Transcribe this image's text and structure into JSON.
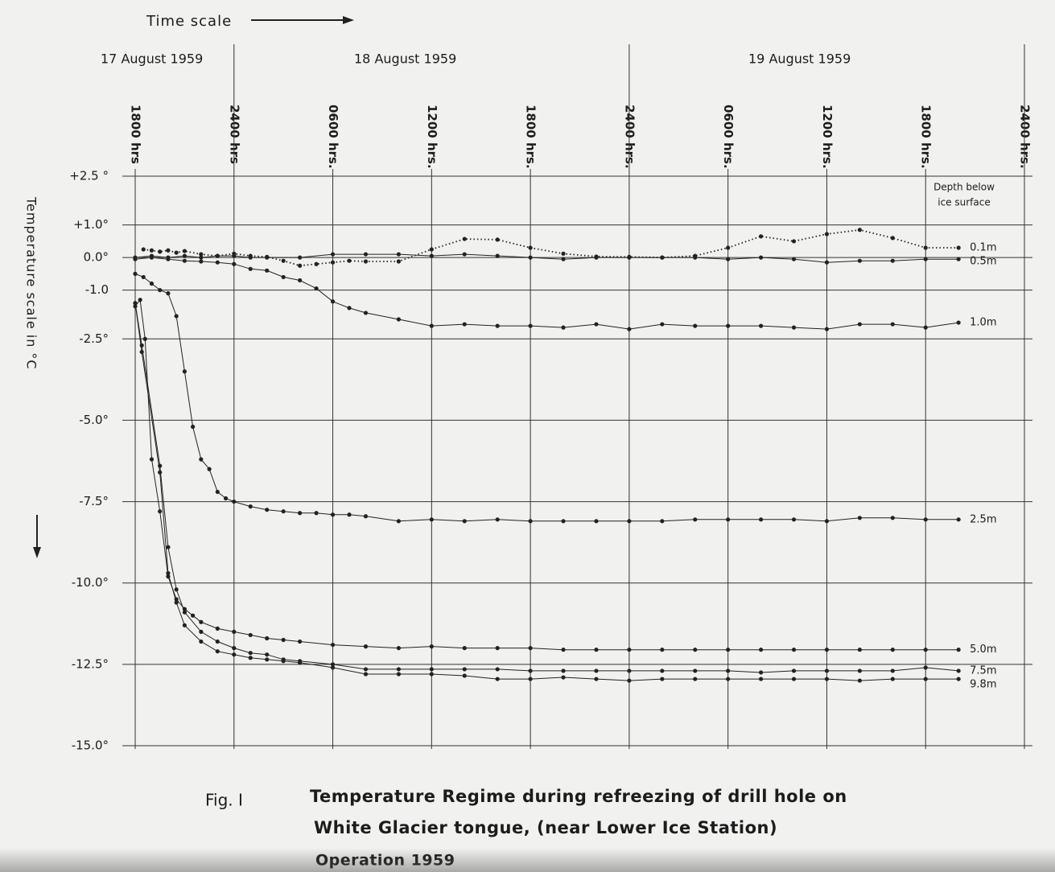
{
  "chart_data": {
    "type": "line",
    "x_header": "Time scale",
    "date_labels": [
      "17  August  1959",
      "18  August  1959",
      "19  August  1959"
    ],
    "y_label": "Temperature  scale  in  °C",
    "legend_title": [
      "Depth below",
      "ice surface"
    ],
    "caption_label": "Fig. I",
    "caption_lines": [
      "Temperature Regime during refreezing of drill hole on",
      "White Glacier tongue, (near Lower Ice Station)",
      "Operation   1959"
    ],
    "xlim": [
      0,
      54
    ],
    "xticks": [
      {
        "value": 0,
        "label": "1800 hrs"
      },
      {
        "value": 6,
        "label": "2400 hrs"
      },
      {
        "value": 12,
        "label": "0600 hrs."
      },
      {
        "value": 18,
        "label": "1200 hrs."
      },
      {
        "value": 24,
        "label": "1800 hrs."
      },
      {
        "value": 30,
        "label": "2400 hrs."
      },
      {
        "value": 36,
        "label": "0600 hrs."
      },
      {
        "value": 42,
        "label": "1200 hrs."
      },
      {
        "value": 48,
        "label": "1800 hrs."
      },
      {
        "value": 54,
        "label": "2400 hrs."
      }
    ],
    "ylim": [
      -15,
      2.5
    ],
    "yticks": [
      {
        "value": 2.5,
        "label": "+2.5 °"
      },
      {
        "value": 1,
        "label": "+1.0°"
      },
      {
        "value": 0,
        "label": "0.0°"
      },
      {
        "value": -1,
        "label": "-1.0"
      },
      {
        "value": -2.5,
        "label": "-2.5°"
      },
      {
        "value": -5,
        "label": "-5.0°"
      },
      {
        "value": -7.5,
        "label": "-7.5°"
      },
      {
        "value": -10,
        "label": "-10.0°"
      },
      {
        "value": -12.5,
        "label": "-12.5°"
      },
      {
        "value": -15,
        "label": "-15.0°"
      }
    ],
    "grid": true,
    "series": [
      {
        "name": "0.1m",
        "color": "#222222",
        "line_style": "dotted",
        "x": [
          0.5,
          1,
          1.5,
          2,
          2.5,
          3,
          4,
          5,
          6,
          7,
          8,
          9,
          10,
          11,
          12,
          13,
          14,
          16,
          18,
          20,
          22,
          24,
          26,
          28,
          30,
          32,
          34,
          36,
          38,
          40,
          42,
          44,
          46,
          48,
          50
        ],
        "values": [
          0.25,
          0.22,
          0.18,
          0.22,
          0.15,
          0.2,
          0.1,
          0.05,
          0.12,
          0.05,
          0.02,
          -0.1,
          -0.25,
          -0.2,
          -0.15,
          -0.1,
          -0.12,
          -0.12,
          0.25,
          0.57,
          0.55,
          0.3,
          0.12,
          0.03,
          0.02,
          0,
          0.05,
          0.3,
          0.65,
          0.5,
          0.72,
          0.85,
          0.6,
          0.3,
          0.3
        ]
      },
      {
        "name": "0.5m",
        "color": "#222222",
        "line_style": "solid",
        "x": [
          0,
          1,
          2,
          3,
          4,
          5,
          6,
          7,
          8,
          10,
          12,
          14,
          16,
          18,
          20,
          22,
          24,
          26,
          28,
          30,
          32,
          34,
          36,
          38,
          40,
          42,
          44,
          46,
          48,
          50
        ],
        "values": [
          0,
          0.05,
          0,
          0.05,
          0,
          0.05,
          0.05,
          0,
          0,
          0,
          0.1,
          0.1,
          0.1,
          0.05,
          0.1,
          0.05,
          0,
          -0.05,
          0,
          0,
          0,
          0,
          -0.05,
          0,
          -0.05,
          -0.15,
          -0.1,
          -0.1,
          -0.05,
          -0.05
        ]
      },
      {
        "name": "1.0m",
        "color": "#222222",
        "line_style": "solid",
        "x": [
          0,
          1,
          2,
          3,
          4,
          5,
          6,
          7,
          8,
          9,
          10,
          11,
          12,
          13,
          14,
          16,
          18,
          20,
          22,
          24,
          26,
          28,
          30,
          32,
          34,
          36,
          38,
          40,
          42,
          44,
          46,
          48,
          50
        ],
        "values": [
          -0.05,
          0,
          -0.05,
          -0.1,
          -0.12,
          -0.15,
          -0.2,
          -0.35,
          -0.4,
          -0.6,
          -0.7,
          -0.95,
          -1.35,
          -1.55,
          -1.7,
          -1.9,
          -2.1,
          -2.05,
          -2.1,
          -2.1,
          -2.15,
          -2.05,
          -2.2,
          -2.05,
          -2.1,
          -2.1,
          -2.1,
          -2.15,
          -2.2,
          -2.05,
          -2.05,
          -2.15,
          -2
        ]
      },
      {
        "name": "2.5m",
        "color": "#222222",
        "line_style": "solid",
        "x": [
          0,
          0.5,
          1,
          1.5,
          2,
          2.5,
          3,
          3.5,
          4,
          4.5,
          5,
          5.5,
          6,
          7,
          8,
          9,
          10,
          11,
          12,
          13,
          14,
          16,
          18,
          20,
          22,
          24,
          26,
          28,
          30,
          32,
          34,
          36,
          38,
          40,
          42,
          44,
          46,
          48,
          50
        ],
        "values": [
          -0.5,
          -0.6,
          -0.8,
          -1,
          -1.1,
          -1.8,
          -3.5,
          -5.2,
          -6.2,
          -6.5,
          -7.2,
          -7.4,
          -7.5,
          -7.65,
          -7.75,
          -7.8,
          -7.85,
          -7.85,
          -7.9,
          -7.9,
          -7.95,
          -8.1,
          -8.05,
          -8.1,
          -8.05,
          -8.1,
          -8.1,
          -8.1,
          -8.1,
          -8.1,
          -8.05,
          -8.05,
          -8.05,
          -8.05,
          -8.1,
          -8,
          -8,
          -8.05,
          -8.05
        ]
      },
      {
        "name": "5.0m",
        "color": "#222222",
        "line_style": "solid",
        "x": [
          0,
          0.3,
          0.6,
          1,
          1.5,
          2,
          2.5,
          3,
          3.5,
          4,
          5,
          6,
          7,
          8,
          9,
          10,
          12,
          14,
          16,
          18,
          20,
          22,
          24,
          26,
          28,
          30,
          32,
          34,
          36,
          38,
          40,
          42,
          44,
          46,
          48,
          50
        ],
        "values": [
          -1.5,
          -1.3,
          -2.5,
          -6.2,
          -7.8,
          -9.8,
          -10.5,
          -10.8,
          -11,
          -11.2,
          -11.4,
          -11.5,
          -11.6,
          -11.7,
          -11.75,
          -11.8,
          -11.9,
          -11.95,
          -12,
          -11.95,
          -12,
          -12,
          -12,
          -12.05,
          -12.05,
          -12.05,
          -12.05,
          -12.05,
          -12.05,
          -12.05,
          -12.05,
          -12.05,
          -12.05,
          -12.05,
          -12.05,
          -12.05
        ]
      },
      {
        "name": "7.5m",
        "color": "#222222",
        "line_style": "solid",
        "x": [
          0,
          0.4,
          1.5,
          2,
          2.5,
          3,
          4,
          5,
          6,
          7,
          8,
          9,
          10,
          12,
          14,
          16,
          18,
          20,
          22,
          24,
          26,
          28,
          30,
          32,
          34,
          36,
          38,
          40,
          42,
          44,
          46,
          48,
          50
        ],
        "values": [
          -1.4,
          -2.7,
          -6.4,
          -8.9,
          -10.2,
          -10.9,
          -11.5,
          -11.8,
          -12,
          -12.15,
          -12.2,
          -12.35,
          -12.4,
          -12.5,
          -12.65,
          -12.65,
          -12.65,
          -12.65,
          -12.65,
          -12.7,
          -12.7,
          -12.7,
          -12.7,
          -12.7,
          -12.7,
          -12.7,
          -12.75,
          -12.7,
          -12.7,
          -12.7,
          -12.7,
          -12.6,
          -12.7
        ]
      },
      {
        "name": "9.8m",
        "color": "#222222",
        "line_style": "solid",
        "x": [
          0,
          0.4,
          1.5,
          2,
          2.5,
          3,
          4,
          5,
          6,
          7,
          8,
          9,
          10,
          12,
          14,
          16,
          18,
          20,
          22,
          24,
          26,
          28,
          30,
          32,
          34,
          36,
          38,
          40,
          42,
          44,
          46,
          48,
          50
        ],
        "values": [
          -1.4,
          -2.9,
          -6.6,
          -9.7,
          -10.6,
          -11.3,
          -11.8,
          -12.1,
          -12.2,
          -12.3,
          -12.35,
          -12.4,
          -12.45,
          -12.6,
          -12.8,
          -12.8,
          -12.8,
          -12.85,
          -12.95,
          -12.95,
          -12.9,
          -12.95,
          -13,
          -12.95,
          -12.95,
          -12.95,
          -12.95,
          -12.95,
          -12.95,
          -13,
          -12.95,
          -12.95,
          -12.95
        ]
      }
    ]
  }
}
